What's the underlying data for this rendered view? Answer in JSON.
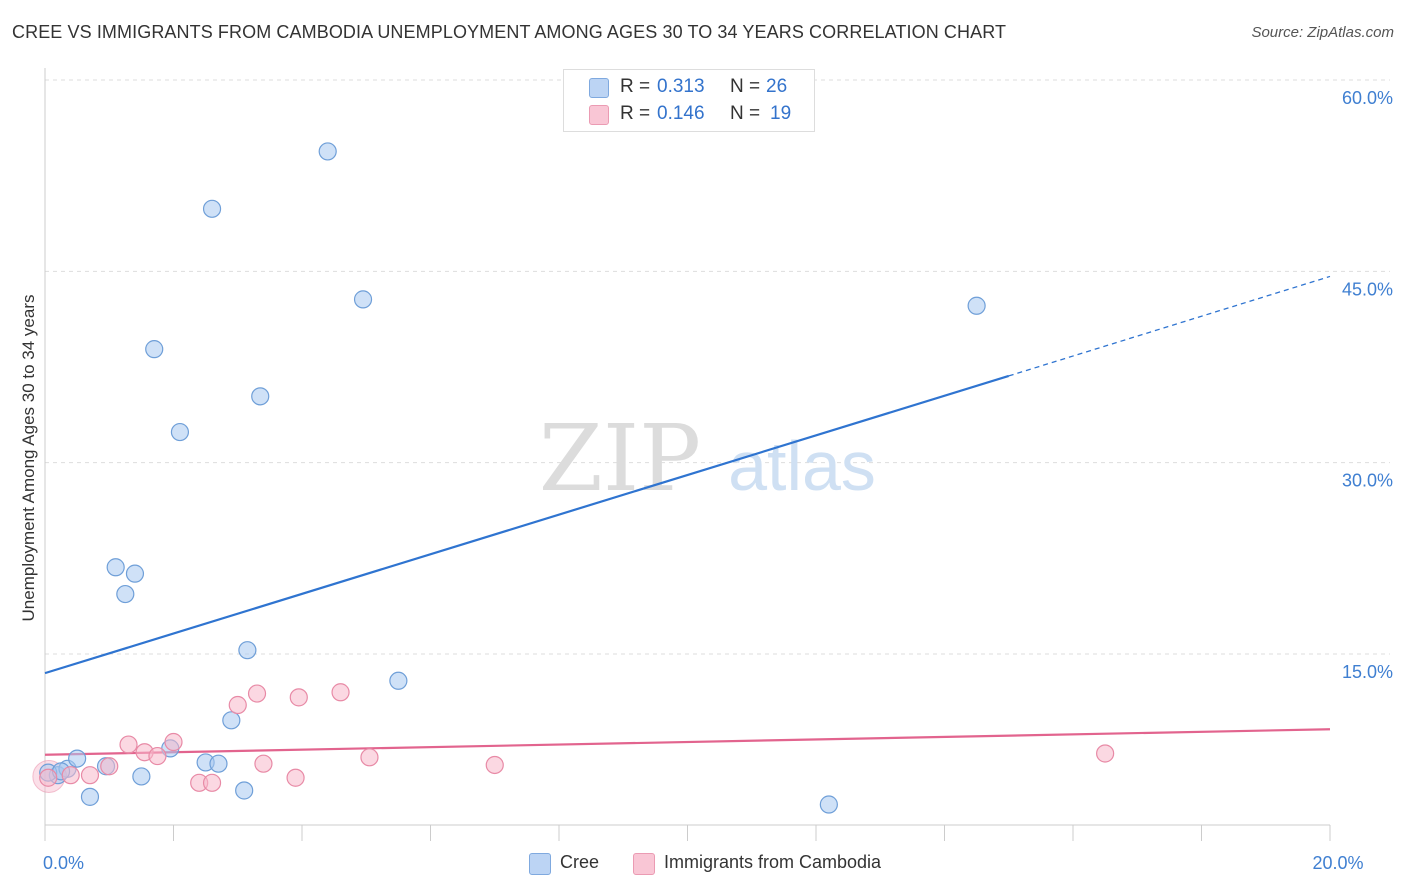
{
  "chart_data": {
    "type": "scatter",
    "title": "CREE VS IMMIGRANTS FROM CAMBODIA UNEMPLOYMENT AMONG AGES 30 TO 34 YEARS CORRELATION CHART",
    "source": "Source: ZipAtlas.com",
    "xlabel": "",
    "ylabel": "Unemployment Among Ages 30 to 34 years",
    "xlim": [
      0,
      20
    ],
    "ylim": [
      0,
      62
    ],
    "x_ticks": [
      {
        "value": 0,
        "label": "0.0%"
      },
      {
        "value": 20,
        "label": "20.0%"
      }
    ],
    "y_ticks": [
      {
        "value": 15,
        "label": "15.0%"
      },
      {
        "value": 30,
        "label": "30.0%"
      },
      {
        "value": 45,
        "label": "45.0%"
      },
      {
        "value": 60,
        "label": "60.0%"
      }
    ],
    "grid": true,
    "watermark": {
      "zip": "ZIP",
      "atlas": "atlas"
    },
    "legend": {
      "position": "top-center",
      "entries": [
        {
          "r_label": "R =",
          "r_value": "0.313",
          "n_label": "N =",
          "n_value": "26"
        },
        {
          "r_label": "R =",
          "r_value": "0.146",
          "n_label": "N =",
          "n_value": "19"
        }
      ]
    },
    "series": [
      {
        "name": "Cree",
        "color": "#a8c8f0",
        "stroke": "#6f9fd8",
        "line_color": "#2f74d0",
        "trend": {
          "x0": 0,
          "y0": 13.5,
          "x1": 15.0,
          "y1": 36.8,
          "dash_to_x": 20.0,
          "dash_to_y": 44.6
        },
        "points": [
          [
            0.2,
            5.5
          ],
          [
            0.35,
            6.0
          ],
          [
            0.5,
            6.8
          ],
          [
            0.7,
            3.8
          ],
          [
            0.95,
            6.2
          ],
          [
            1.1,
            21.8
          ],
          [
            1.25,
            19.7
          ],
          [
            1.4,
            21.3
          ],
          [
            1.5,
            5.4
          ],
          [
            1.7,
            38.9
          ],
          [
            1.95,
            7.6
          ],
          [
            2.1,
            32.4
          ],
          [
            2.5,
            6.5
          ],
          [
            2.6,
            49.9
          ],
          [
            2.7,
            6.4
          ],
          [
            2.9,
            9.8
          ],
          [
            3.1,
            4.3
          ],
          [
            3.15,
            15.3
          ],
          [
            3.35,
            35.2
          ],
          [
            4.4,
            54.4
          ],
          [
            4.95,
            42.8
          ],
          [
            5.5,
            12.9
          ],
          [
            12.2,
            3.2
          ],
          [
            14.5,
            42.3
          ],
          [
            0.05,
            5.7
          ],
          [
            0.25,
            5.8
          ]
        ]
      },
      {
        "name": "Immigrants from Cambodia",
        "color": "#f7b8cb",
        "stroke": "#e88aa6",
        "line_color": "#e2648e",
        "trend": {
          "x0": 0,
          "y0": 7.1,
          "x1": 20.0,
          "y1": 9.1
        },
        "points": [
          [
            0.05,
            5.3
          ],
          [
            0.4,
            5.5
          ],
          [
            0.7,
            5.5
          ],
          [
            1.0,
            6.2
          ],
          [
            1.3,
            7.9
          ],
          [
            1.55,
            7.3
          ],
          [
            1.75,
            7.0
          ],
          [
            2.0,
            8.1
          ],
          [
            2.4,
            4.9
          ],
          [
            2.6,
            4.9
          ],
          [
            3.0,
            11.0
          ],
          [
            3.3,
            11.9
          ],
          [
            3.4,
            6.4
          ],
          [
            3.95,
            11.6
          ],
          [
            3.9,
            5.3
          ],
          [
            4.6,
            12.0
          ],
          [
            5.05,
            6.9
          ],
          [
            7.0,
            6.3
          ],
          [
            16.5,
            7.2
          ]
        ]
      }
    ]
  }
}
